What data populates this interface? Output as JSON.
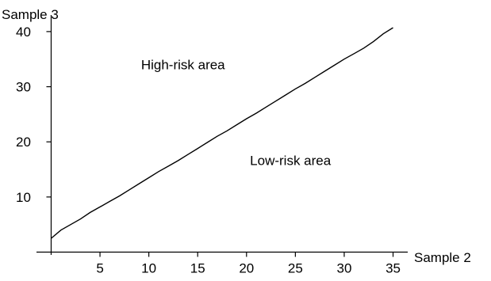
{
  "chart_data": {
    "type": "line",
    "title": "",
    "xlabel": "Sample 2",
    "ylabel": "Sample 3",
    "xlim": [
      -1.5,
      36.5
    ],
    "ylim": [
      -0.5,
      43
    ],
    "x_ticks": [
      5,
      10,
      15,
      20,
      25,
      30,
      35
    ],
    "y_ticks": [
      10,
      20,
      30,
      40
    ],
    "grid": false,
    "legend": "none",
    "annotations": [
      {
        "text": "High-risk area",
        "x": 13.5,
        "y": 33.2
      },
      {
        "text": "Low-risk area",
        "x": 24.5,
        "y": 15.8
      }
    ],
    "series": [
      {
        "x": [
          0,
          1,
          2,
          3,
          4,
          5,
          6,
          7,
          8,
          9,
          10,
          11,
          12,
          13,
          14,
          15,
          16,
          17,
          18,
          19,
          20,
          21,
          22,
          23,
          24,
          25,
          26,
          27,
          28,
          29,
          30,
          31,
          32,
          33,
          34,
          35
        ],
        "y": [
          2.5,
          4.0,
          5.0,
          6.0,
          7.2,
          8.2,
          9.2,
          10.2,
          11.3,
          12.4,
          13.5,
          14.6,
          15.6,
          16.6,
          17.7,
          18.8,
          19.9,
          21.0,
          22.0,
          23.1,
          24.2,
          25.2,
          26.3,
          27.4,
          28.5,
          29.6,
          30.6,
          31.7,
          32.8,
          33.9,
          35.0,
          36.0,
          37.0,
          38.2,
          39.6,
          40.7
        ],
        "color": "#000000"
      }
    ]
  }
}
